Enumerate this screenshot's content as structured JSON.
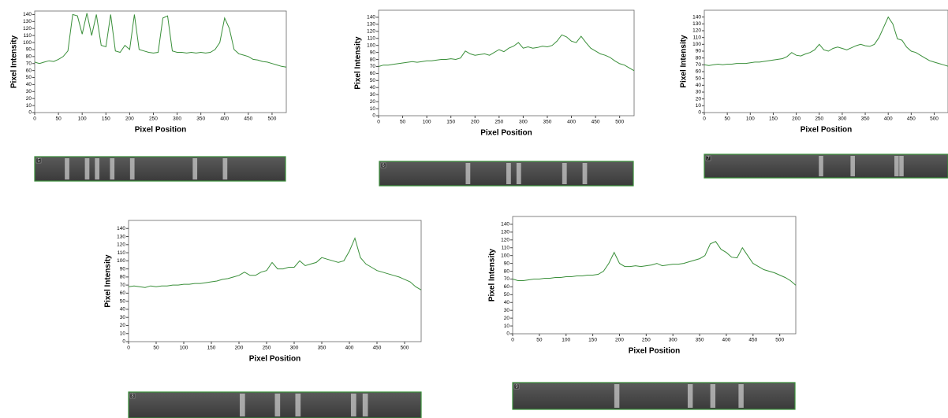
{
  "chart_data": [
    {
      "type": "line",
      "xlabel": "Pixel Position",
      "ylabel": "Pixel Intensity",
      "lane": "5",
      "color": "#3a8f3a",
      "x": [
        0,
        10,
        20,
        30,
        40,
        50,
        60,
        70,
        80,
        90,
        100,
        110,
        120,
        130,
        140,
        150,
        160,
        170,
        180,
        190,
        200,
        210,
        220,
        230,
        240,
        250,
        260,
        270,
        280,
        290,
        300,
        310,
        320,
        330,
        340,
        350,
        360,
        370,
        380,
        390,
        400,
        410,
        420,
        430,
        440,
        450,
        460,
        470,
        480,
        490,
        500,
        510,
        520,
        530
      ],
      "values": [
        72,
        70,
        72,
        74,
        73,
        76,
        80,
        88,
        140,
        138,
        112,
        142,
        110,
        140,
        96,
        94,
        140,
        88,
        86,
        96,
        90,
        140,
        90,
        88,
        86,
        85,
        86,
        135,
        138,
        88,
        86,
        86,
        85,
        86,
        85,
        86,
        85,
        86,
        90,
        100,
        135,
        120,
        90,
        84,
        82,
        80,
        76,
        75,
        73,
        72,
        70,
        68,
        66,
        65
      ],
      "xlim": [
        0,
        530
      ],
      "ylim": [
        0,
        145
      ],
      "xticks": [
        0,
        50,
        100,
        150,
        200,
        250,
        300,
        350,
        400,
        450,
        500
      ],
      "yticks": [
        0,
        10,
        20,
        30,
        40,
        50,
        60,
        70,
        80,
        90,
        100,
        110,
        120,
        130,
        140
      ]
    },
    {
      "type": "line",
      "xlabel": "Pixel Position",
      "ylabel": "Pixel Intensity",
      "lane": "6",
      "color": "#3a8f3a",
      "x": [
        0,
        10,
        20,
        30,
        40,
        50,
        60,
        70,
        80,
        90,
        100,
        110,
        120,
        130,
        140,
        150,
        160,
        170,
        180,
        190,
        200,
        210,
        220,
        230,
        240,
        250,
        260,
        270,
        280,
        290,
        300,
        310,
        320,
        330,
        340,
        350,
        360,
        370,
        380,
        390,
        400,
        410,
        420,
        430,
        440,
        450,
        460,
        470,
        480,
        490,
        500,
        510,
        520,
        530
      ],
      "values": [
        70,
        72,
        72,
        73,
        74,
        75,
        76,
        77,
        76,
        77,
        78,
        78,
        79,
        80,
        80,
        81,
        80,
        82,
        92,
        88,
        86,
        87,
        88,
        86,
        90,
        94,
        91,
        96,
        99,
        104,
        96,
        98,
        96,
        97,
        99,
        98,
        100,
        106,
        115,
        112,
        106,
        104,
        113,
        104,
        96,
        92,
        88,
        86,
        83,
        78,
        74,
        72,
        68,
        64
      ],
      "xlim": [
        0,
        530
      ],
      "ylim": [
        0,
        150
      ],
      "xticks": [
        0,
        50,
        100,
        150,
        200,
        250,
        300,
        350,
        400,
        450,
        500
      ],
      "yticks": [
        0,
        10,
        20,
        30,
        40,
        50,
        60,
        70,
        80,
        90,
        100,
        110,
        120,
        130,
        140
      ]
    },
    {
      "type": "line",
      "xlabel": "Pixel Position",
      "ylabel": "Pixel Intensity",
      "lane": "7",
      "color": "#3a8f3a",
      "x": [
        0,
        10,
        20,
        30,
        40,
        50,
        60,
        70,
        80,
        90,
        100,
        110,
        120,
        130,
        140,
        150,
        160,
        170,
        180,
        190,
        200,
        210,
        220,
        230,
        240,
        250,
        260,
        270,
        280,
        290,
        300,
        310,
        320,
        330,
        340,
        350,
        360,
        370,
        380,
        390,
        400,
        410,
        420,
        430,
        440,
        450,
        460,
        470,
        480,
        490,
        500,
        510,
        520,
        530
      ],
      "values": [
        70,
        69,
        70,
        71,
        70,
        71,
        71,
        72,
        72,
        72,
        73,
        74,
        74,
        75,
        76,
        77,
        78,
        79,
        82,
        88,
        84,
        83,
        86,
        88,
        92,
        100,
        92,
        90,
        94,
        96,
        94,
        92,
        95,
        98,
        100,
        98,
        97,
        100,
        110,
        125,
        140,
        130,
        108,
        106,
        96,
        90,
        88,
        84,
        80,
        76,
        74,
        72,
        70,
        68
      ],
      "xlim": [
        0,
        530
      ],
      "ylim": [
        0,
        150
      ],
      "xticks": [
        0,
        50,
        100,
        150,
        200,
        250,
        300,
        350,
        400,
        450,
        500
      ],
      "yticks": [
        0,
        10,
        20,
        30,
        40,
        50,
        60,
        70,
        80,
        90,
        100,
        110,
        120,
        130,
        140
      ]
    },
    {
      "type": "line",
      "xlabel": "Pixel Position",
      "ylabel": "Pixel Intensity",
      "lane": "8",
      "color": "#3a8f3a",
      "x": [
        0,
        10,
        20,
        30,
        40,
        50,
        60,
        70,
        80,
        90,
        100,
        110,
        120,
        130,
        140,
        150,
        160,
        170,
        180,
        190,
        200,
        210,
        220,
        230,
        240,
        250,
        260,
        270,
        280,
        290,
        300,
        310,
        320,
        330,
        340,
        350,
        360,
        370,
        380,
        390,
        400,
        410,
        420,
        430,
        440,
        450,
        460,
        470,
        480,
        490,
        500,
        510,
        520,
        530
      ],
      "values": [
        68,
        69,
        68,
        67,
        69,
        68,
        69,
        69,
        70,
        70,
        71,
        71,
        72,
        72,
        73,
        74,
        75,
        77,
        78,
        80,
        82,
        86,
        82,
        82,
        86,
        88,
        98,
        90,
        90,
        92,
        92,
        100,
        94,
        96,
        98,
        104,
        102,
        100,
        98,
        100,
        112,
        128,
        104,
        96,
        92,
        88,
        86,
        84,
        82,
        80,
        77,
        74,
        68,
        64
      ],
      "xlim": [
        0,
        530
      ],
      "ylim": [
        0,
        150
      ],
      "xticks": [
        0,
        50,
        100,
        150,
        200,
        250,
        300,
        350,
        400,
        450,
        500
      ],
      "yticks": [
        0,
        10,
        20,
        30,
        40,
        50,
        60,
        70,
        80,
        90,
        100,
        110,
        120,
        130,
        140
      ]
    },
    {
      "type": "line",
      "xlabel": "Pixel Position",
      "ylabel": "Pixel Intensity",
      "lane": "9",
      "color": "#3a8f3a",
      "x": [
        0,
        10,
        20,
        30,
        40,
        50,
        60,
        70,
        80,
        90,
        100,
        110,
        120,
        130,
        140,
        150,
        160,
        170,
        180,
        190,
        200,
        210,
        220,
        230,
        240,
        250,
        260,
        270,
        280,
        290,
        300,
        310,
        320,
        330,
        340,
        350,
        360,
        370,
        380,
        390,
        400,
        410,
        420,
        430,
        440,
        450,
        460,
        470,
        480,
        490,
        500,
        510,
        520,
        530
      ],
      "values": [
        70,
        68,
        68,
        69,
        70,
        70,
        71,
        71,
        72,
        72,
        73,
        73,
        74,
        74,
        75,
        75,
        76,
        80,
        90,
        104,
        90,
        86,
        86,
        87,
        86,
        87,
        88,
        90,
        87,
        88,
        89,
        89,
        90,
        92,
        94,
        96,
        100,
        115,
        118,
        108,
        104,
        98,
        97,
        110,
        100,
        90,
        86,
        82,
        80,
        78,
        75,
        72,
        68,
        62
      ],
      "xlim": [
        0,
        530
      ],
      "ylim": [
        0,
        150
      ],
      "xticks": [
        0,
        50,
        100,
        150,
        200,
        250,
        300,
        350,
        400,
        450,
        500
      ],
      "yticks": [
        0,
        10,
        20,
        30,
        40,
        50,
        60,
        70,
        80,
        90,
        100,
        110,
        120,
        130,
        140
      ]
    }
  ]
}
